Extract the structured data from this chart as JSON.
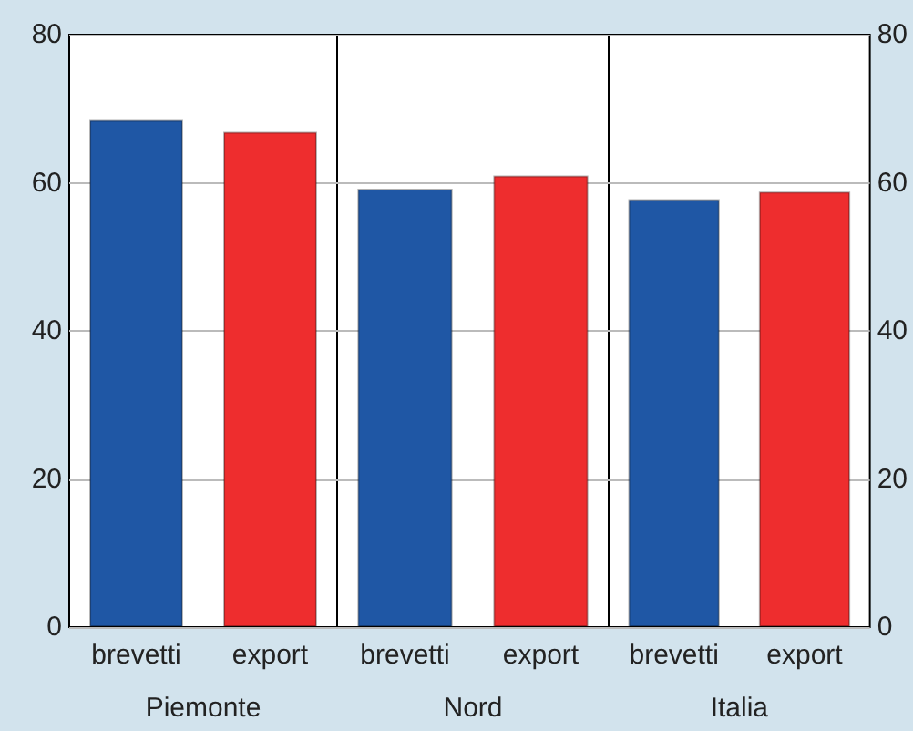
{
  "chart_data": [
    {
      "type": "bar",
      "categories": [
        "brevetti",
        "export"
      ],
      "xlabel": "Piemonte",
      "values": [
        68.5,
        66.9
      ],
      "colors": [
        "#1f57a5",
        "#ee2d2e"
      ],
      "ylim": [
        0,
        80
      ],
      "yticks": [
        0,
        20,
        40,
        60,
        80
      ],
      "grid": "y"
    },
    {
      "type": "bar",
      "categories": [
        "brevetti",
        "export"
      ],
      "xlabel": "Nord",
      "values": [
        59.2,
        61.0
      ],
      "colors": [
        "#1f57a5",
        "#ee2d2e"
      ],
      "ylim": [
        0,
        80
      ],
      "yticks": [
        0,
        20,
        40,
        60,
        80
      ],
      "grid": "y",
      "tick_labels": "x"
    },
    {
      "type": "bar",
      "categories": [
        "brevetti",
        "export"
      ],
      "xlabel": "Italia",
      "series": [
        {
          "values": [
            57.8,
            58.8
          ],
          "colors": [
            "#1f57a5",
            "#ee2d2e"
          ],
          "axis": "y2"
        }
      ],
      "y2lim": [
        0,
        80
      ],
      "y2ticks": [
        0,
        20,
        40,
        60,
        80
      ],
      "grid": "y"
    }
  ]
}
